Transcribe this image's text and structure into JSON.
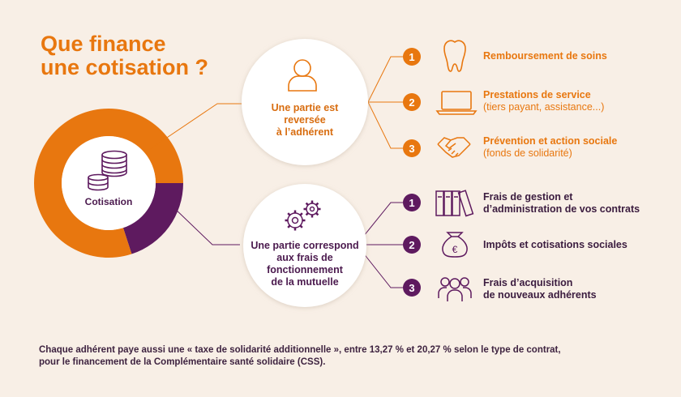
{
  "title": {
    "line1": "Que finance",
    "line2": "une cotisation ?"
  },
  "center": {
    "label": "Cotisation"
  },
  "chart_data": {
    "type": "pie",
    "categories": [
      "Une partie est reversée à l'adhérent",
      "Une partie correspond aux frais de fonctionnement de la mutuelle"
    ],
    "values": [
      80,
      20
    ],
    "colors": [
      "#e8770f",
      "#5e1a5f"
    ]
  },
  "branches": [
    {
      "label_lines": [
        "Une partie est",
        "reversée",
        "à l’adhérent"
      ],
      "color": "#e8770f",
      "items": [
        {
          "num": "1",
          "main": "Remboursement de soins",
          "sub": "",
          "icon": "tooth-icon"
        },
        {
          "num": "2",
          "main": "Prestations de service",
          "sub": "(tiers payant, assistance...)",
          "icon": "laptop-icon"
        },
        {
          "num": "3",
          "main": "Prévention et action sociale",
          "sub": "(fonds de solidarité)",
          "icon": "handshake-icon"
        }
      ]
    },
    {
      "label_lines": [
        "Une partie correspond",
        "aux frais de",
        "fonctionnement",
        "de la mutuelle"
      ],
      "color": "#5e1a5f",
      "items": [
        {
          "num": "1",
          "main_lines": [
            "Frais de gestion et",
            "d’administration de vos contrats"
          ],
          "icon": "binders-icon"
        },
        {
          "num": "2",
          "main_lines": [
            "Impôts et cotisations sociales"
          ],
          "icon": "money-bag-icon"
        },
        {
          "num": "3",
          "main_lines": [
            "Frais d’acquisition",
            "de nouveaux adhérents"
          ],
          "icon": "people-icon"
        }
      ]
    }
  ],
  "footnote": {
    "line1": "Chaque adhérent paye aussi une « taxe de solidarité additionnelle », entre 13,27 % et 20,27 % selon le type de contrat,",
    "line2": "pour le financement de la Complémentaire santé solidaire (CSS)."
  }
}
